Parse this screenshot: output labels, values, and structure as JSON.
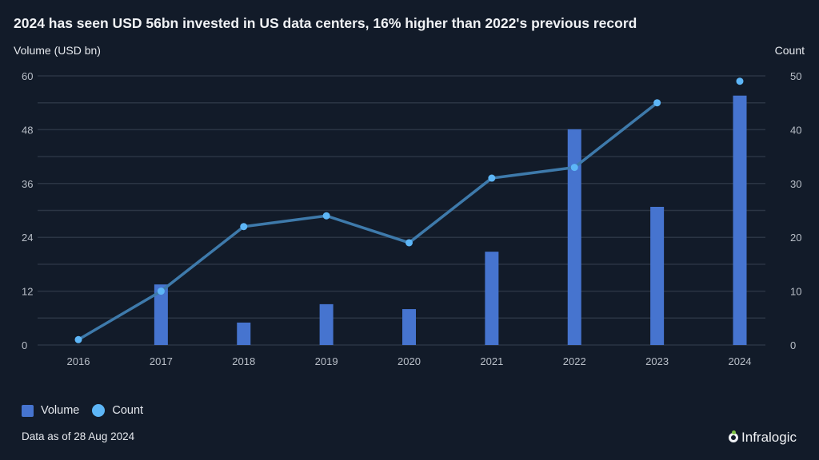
{
  "chart_data": {
    "type": "bar+line",
    "title": "2024 has seen USD 56bn invested in US data centers, 16% higher than 2022's previous record",
    "categories": [
      "2016",
      "2017",
      "2018",
      "2019",
      "2020",
      "2021",
      "2022",
      "2023",
      "2024"
    ],
    "series": [
      {
        "name": "Volume",
        "type": "bar",
        "axis": "left",
        "color": "#4674cf",
        "values": [
          0,
          13.5,
          5.0,
          9.1,
          8.0,
          20.8,
          48.1,
          30.8,
          55.6
        ]
      },
      {
        "name": "Count",
        "type": "line",
        "axis": "right",
        "color": "#5db6f7",
        "line_color": "#3e7aab",
        "values": [
          1,
          10,
          22,
          24,
          19,
          31,
          33,
          45,
          49
        ],
        "connected_through": "2023"
      }
    ],
    "y_left": {
      "label": "Volume (USD bn)",
      "min": 0,
      "max": 60,
      "ticks": [
        "0",
        "12",
        "24",
        "36",
        "48",
        "60"
      ]
    },
    "y_right": {
      "label": "Count",
      "min": 0,
      "max": 50,
      "ticks": [
        "0",
        "10",
        "20",
        "30",
        "40",
        "50"
      ]
    },
    "grid": true,
    "legend_position": "bottom-left"
  },
  "legend": {
    "volume": "Volume",
    "count": "Count"
  },
  "footnote": "Data as of 28 Aug 2024",
  "brand": "Infralogic"
}
